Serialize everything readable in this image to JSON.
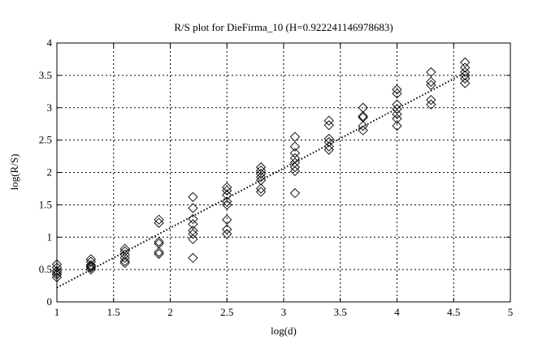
{
  "chart_data": {
    "type": "scatter",
    "title": "R/S plot for DieFirma_10 (H=0.922241146978683)",
    "xlabel": "log(d)",
    "ylabel": "log(R/S)",
    "xlim": [
      1,
      5
    ],
    "ylim": [
      0,
      4
    ],
    "xticks": [
      "1",
      "1.5",
      "2",
      "2.5",
      "3",
      "3.5",
      "4",
      "4.5",
      "5"
    ],
    "yticks": [
      "0",
      "0.5",
      "1",
      "1.5",
      "2",
      "2.5",
      "3",
      "3.5",
      "4"
    ],
    "grid": true,
    "marker": "diamond",
    "series": [
      {
        "name": "R/S points",
        "points": [
          [
            1.0,
            0.58
          ],
          [
            1.0,
            0.53
          ],
          [
            1.0,
            0.48
          ],
          [
            1.0,
            0.45
          ],
          [
            1.0,
            0.42
          ],
          [
            1.0,
            0.38
          ],
          [
            1.3,
            0.66
          ],
          [
            1.3,
            0.62
          ],
          [
            1.3,
            0.57
          ],
          [
            1.3,
            0.55
          ],
          [
            1.3,
            0.53
          ],
          [
            1.3,
            0.5
          ],
          [
            1.6,
            0.82
          ],
          [
            1.6,
            0.78
          ],
          [
            1.6,
            0.73
          ],
          [
            1.6,
            0.68
          ],
          [
            1.6,
            0.63
          ],
          [
            1.6,
            0.6
          ],
          [
            1.9,
            1.27
          ],
          [
            1.9,
            1.22
          ],
          [
            1.9,
            0.93
          ],
          [
            1.9,
            0.9
          ],
          [
            1.9,
            0.77
          ],
          [
            1.9,
            0.74
          ],
          [
            2.2,
            1.62
          ],
          [
            2.2,
            1.45
          ],
          [
            2.2,
            1.28
          ],
          [
            2.2,
            1.2
          ],
          [
            2.2,
            1.1
          ],
          [
            2.2,
            1.05
          ],
          [
            2.2,
            0.97
          ],
          [
            2.2,
            0.68
          ],
          [
            2.5,
            1.77
          ],
          [
            2.5,
            1.72
          ],
          [
            2.5,
            1.65
          ],
          [
            2.5,
            1.55
          ],
          [
            2.5,
            1.5
          ],
          [
            2.5,
            1.27
          ],
          [
            2.5,
            1.12
          ],
          [
            2.5,
            1.05
          ],
          [
            2.8,
            2.08
          ],
          [
            2.8,
            2.03
          ],
          [
            2.8,
            1.98
          ],
          [
            2.8,
            1.93
          ],
          [
            2.8,
            1.88
          ],
          [
            2.8,
            1.75
          ],
          [
            2.8,
            1.7
          ],
          [
            3.1,
            2.55
          ],
          [
            3.1,
            2.4
          ],
          [
            3.1,
            2.3
          ],
          [
            3.1,
            2.22
          ],
          [
            3.1,
            2.15
          ],
          [
            3.1,
            2.08
          ],
          [
            3.1,
            2.02
          ],
          [
            3.1,
            1.68
          ],
          [
            3.4,
            2.8
          ],
          [
            3.4,
            2.73
          ],
          [
            3.4,
            2.52
          ],
          [
            3.4,
            2.47
          ],
          [
            3.4,
            2.4
          ],
          [
            3.4,
            2.35
          ],
          [
            3.7,
            3.0
          ],
          [
            3.7,
            2.87
          ],
          [
            3.7,
            2.85
          ],
          [
            3.7,
            2.72
          ],
          [
            3.7,
            2.65
          ],
          [
            4.0,
            3.28
          ],
          [
            4.0,
            3.22
          ],
          [
            4.0,
            3.05
          ],
          [
            4.0,
            2.98
          ],
          [
            4.0,
            2.9
          ],
          [
            4.0,
            2.83
          ],
          [
            4.0,
            2.72
          ],
          [
            4.3,
            3.55
          ],
          [
            4.3,
            3.4
          ],
          [
            4.3,
            3.35
          ],
          [
            4.3,
            3.12
          ],
          [
            4.3,
            3.05
          ],
          [
            4.6,
            3.7
          ],
          [
            4.6,
            3.62
          ],
          [
            4.6,
            3.55
          ],
          [
            4.6,
            3.5
          ],
          [
            4.6,
            3.45
          ],
          [
            4.6,
            3.38
          ]
        ]
      },
      {
        "name": "fit line",
        "type": "line",
        "style": "dotted",
        "x": [
          1.0,
          4.6
        ],
        "y": [
          0.22,
          3.54
        ]
      }
    ],
    "legend": "none"
  }
}
